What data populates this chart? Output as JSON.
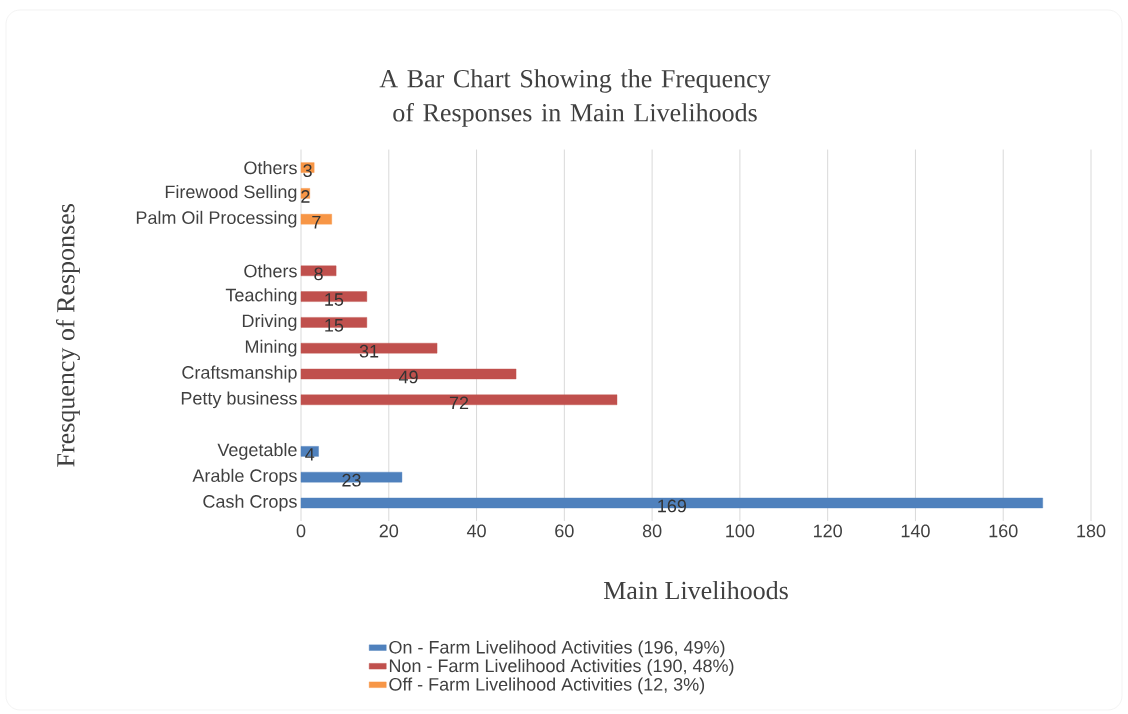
{
  "chart_data": {
    "type": "bar",
    "orientation": "horizontal",
    "title": "A Bar Chart Showing the Frequency of Responses in Main Livelihoods",
    "xlabel": "Main Livelihoods",
    "ylabel": "Fresquency of Responses",
    "categories": [
      "Others",
      "Firewood Selling",
      "Palm Oil Processing",
      null,
      "Others",
      "Teaching",
      "Driving",
      "Mining",
      "Craftsmanship",
      "Petty business",
      null,
      "Vegetable",
      "Arable Crops",
      "Cash Crops"
    ],
    "series": [
      {
        "name": "On - Farm Livelihood Activities (196, 49%)",
        "color": "#4f81bd",
        "values": [
          null,
          null,
          null,
          null,
          null,
          null,
          null,
          null,
          null,
          null,
          null,
          4,
          23,
          169
        ]
      },
      {
        "name": "Non - Farm Livelihood Activities (190, 48%)",
        "color": "#c0504d",
        "values": [
          null,
          null,
          null,
          null,
          8,
          15,
          15,
          31,
          49,
          72,
          null,
          null,
          null,
          null
        ]
      },
      {
        "name": "Off - Farm Livelihood Activities (12, 3%)",
        "color": "#f79646",
        "values": [
          3,
          2,
          7,
          null,
          null,
          null,
          null,
          null,
          null,
          null,
          null,
          null,
          null,
          null
        ]
      }
    ],
    "xlim": [
      0,
      180
    ],
    "xticks": [
      0,
      20,
      40,
      60,
      80,
      100,
      120,
      140,
      160,
      180
    ],
    "grid": "x",
    "legend": "bottom",
    "data_labels": true
  }
}
